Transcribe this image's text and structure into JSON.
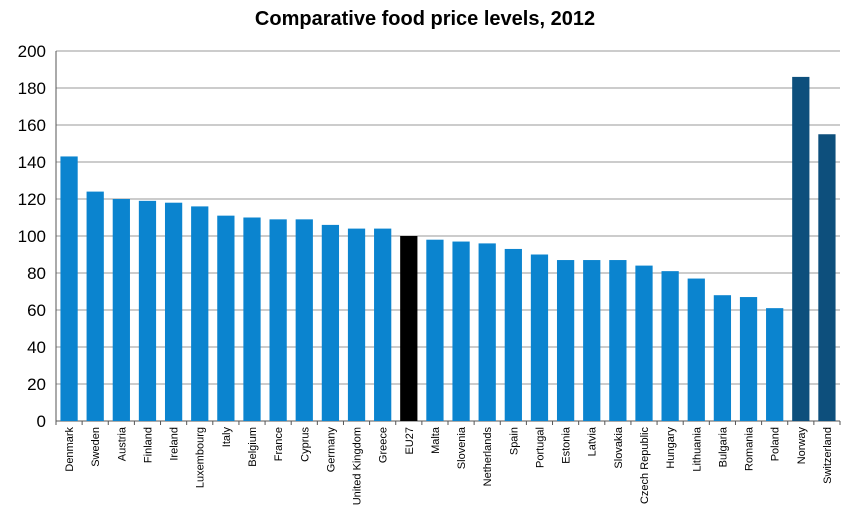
{
  "chart_data": {
    "type": "bar",
    "title": "Comparative food price levels, 2012",
    "xlabel": "",
    "ylabel": "",
    "ylim": [
      0,
      200
    ],
    "yticks": [
      0,
      20,
      40,
      60,
      80,
      100,
      120,
      140,
      160,
      180,
      200
    ],
    "grid": true,
    "legend": "none",
    "categories": [
      "Denmark",
      "Sweden",
      "Austria",
      "Finland",
      "Ireland",
      "Luxembourg",
      "Italy",
      "Belgium",
      "France",
      "Cyprus",
      "Germany",
      "United Kingdom",
      "Greece",
      "EU27",
      "Malta",
      "Slovenia",
      "Netherlands",
      "Spain",
      "Portugal",
      "Estonia",
      "Latvia",
      "Slovakia",
      "Czech Republic",
      "Hungary",
      "Lithuania",
      "Bulgaria",
      "Romania",
      "Poland",
      "Norway",
      "Switzerland"
    ],
    "values": [
      143,
      124,
      120,
      119,
      118,
      116,
      111,
      110,
      109,
      109,
      106,
      104,
      104,
      100,
      98,
      97,
      96,
      93,
      90,
      87,
      87,
      87,
      84,
      81,
      77,
      68,
      67,
      61,
      186,
      155
    ],
    "colors": {
      "default": "#0b84cf",
      "eu27": "#000000",
      "non_eu": "#0d4f7c"
    },
    "color_groups": {
      "eu27": [
        "EU27"
      ],
      "non_eu": [
        "Norway",
        "Switzerland"
      ]
    }
  }
}
